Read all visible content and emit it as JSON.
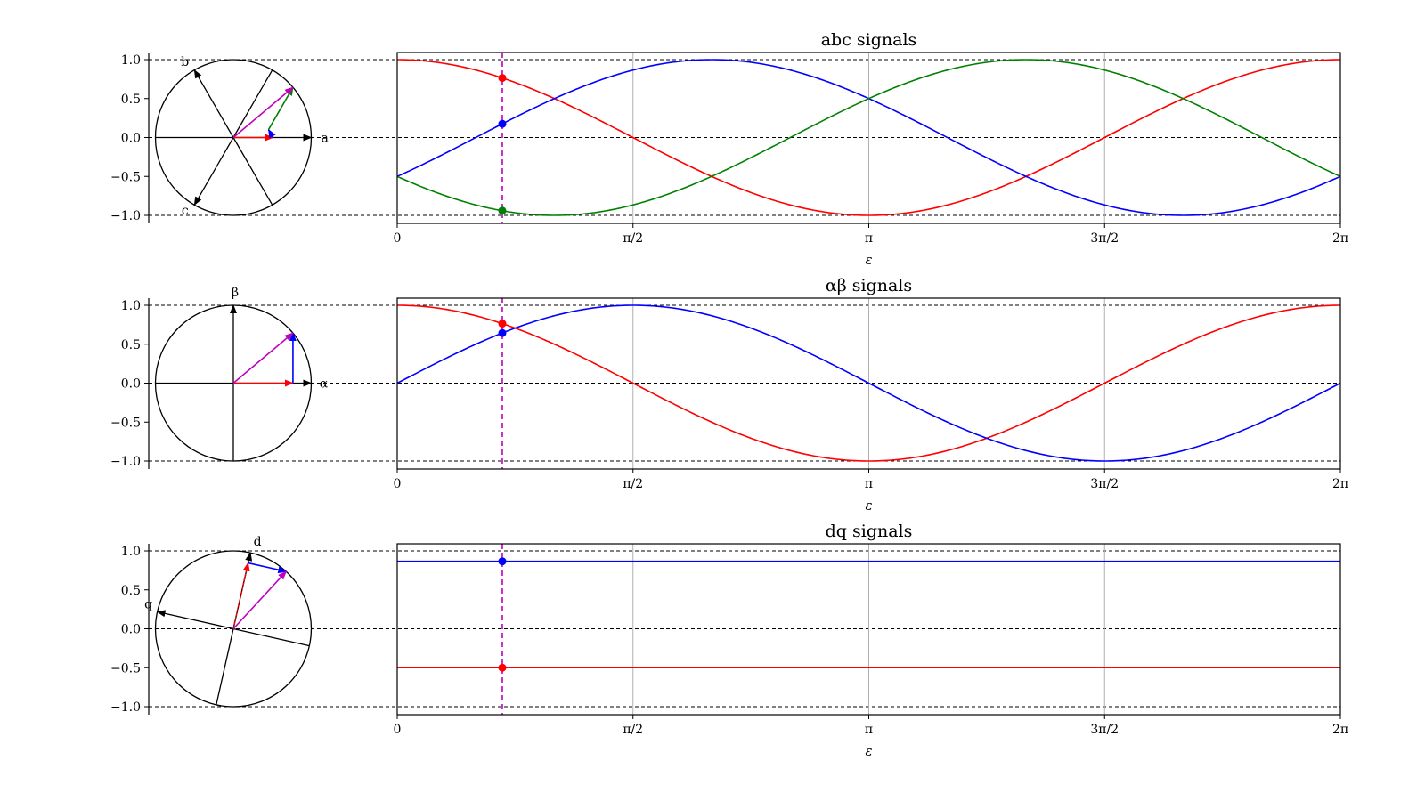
{
  "colors": {
    "a": "#ff0000",
    "b": "#0000ff",
    "c": "#008000",
    "resultant": "#bf00bf",
    "axis": "#000000",
    "grid": "#b0b0b0"
  },
  "x_tick_labels": [
    "0",
    "π/2",
    "π",
    "3π/2",
    "2π"
  ],
  "cursor_epsilon": 0.7,
  "chart_data": [
    {
      "type": "line",
      "title": "abc signals",
      "xlabel": "ε",
      "x_range": [
        "0",
        "2π"
      ],
      "ylim": [
        -1.0,
        1.0
      ],
      "y_ticks": [
        "1.0",
        "0.5",
        "0.0",
        "−0.5",
        "−1.0"
      ],
      "series": [
        {
          "formula": "cos(ε)",
          "color": "#ff0000"
        },
        {
          "formula": "cos(ε − 2π/3)",
          "color": "#0000ff"
        },
        {
          "formula": "cos(ε + 2π/3)",
          "color": "#008000"
        }
      ],
      "cursor_points": [
        0.76,
        0.18,
        -0.94
      ],
      "phasor_axes_labels": [
        "a",
        "b",
        "c"
      ]
    },
    {
      "type": "line",
      "title": "αβ signals",
      "xlabel": "ε",
      "x_range": [
        "0",
        "2π"
      ],
      "ylim": [
        -1.0,
        1.0
      ],
      "y_ticks": [
        "1.0",
        "0.5",
        "0.0",
        "−0.5",
        "−1.0"
      ],
      "series": [
        {
          "formula": "cos(ε)",
          "color": "#ff0000"
        },
        {
          "formula": "sin(ε)",
          "color": "#0000ff"
        }
      ],
      "cursor_points": [
        0.76,
        0.64
      ],
      "phasor_axes_labels": [
        "α",
        "β"
      ]
    },
    {
      "type": "line",
      "title": "dq signals",
      "xlabel": "ε",
      "x_range": [
        "0",
        "2π"
      ],
      "ylim": [
        -1.0,
        1.0
      ],
      "y_ticks": [
        "1.0",
        "0.5",
        "0.0",
        "−0.5",
        "−1.0"
      ],
      "series": [
        {
          "formula": "0.866",
          "color": "#0000ff"
        },
        {
          "formula": "-0.5",
          "color": "#ff0000"
        }
      ],
      "cursor_points": [
        0.866,
        -0.5
      ],
      "phasor_axes_labels": [
        "d",
        "q"
      ]
    }
  ]
}
